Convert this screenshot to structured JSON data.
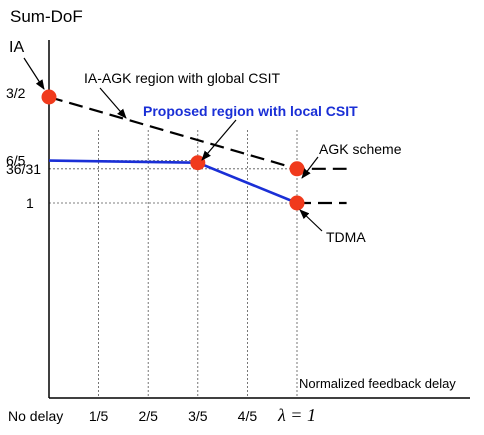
{
  "chart_data": {
    "type": "line",
    "ylabel": "Sum-DoF",
    "xlabel": "Normalized feedback delay",
    "x_ticks": [
      {
        "value": 0,
        "label": "No delay"
      },
      {
        "value": 0.2,
        "label": "1/5"
      },
      {
        "value": 0.4,
        "label": "2/5"
      },
      {
        "value": 0.6,
        "label": "3/5"
      },
      {
        "value": 0.8,
        "label": "4/5"
      },
      {
        "value": 1.0,
        "label": "λ = 1"
      }
    ],
    "y_ticks": [
      {
        "value": 1.5,
        "label": "3/2"
      },
      {
        "value": 1.2,
        "label": "6/5"
      },
      {
        "value": 1.1613,
        "label": "36/31"
      },
      {
        "value": 1.0,
        "label": "1"
      }
    ],
    "xlim": [
      0,
      1.2
    ],
    "series": [
      {
        "name": "IA-AGK region with global CSIT",
        "color": "#000000",
        "dash": true,
        "x": [
          0,
          1.0,
          1.2
        ],
        "y": [
          1.5,
          1.1613,
          1.1613
        ]
      },
      {
        "name": "Proposed region with local CSIT",
        "color": "#1a2fd6",
        "dash": false,
        "x": [
          0,
          0.6,
          1.0
        ],
        "y": [
          1.2,
          1.19,
          1.0
        ]
      },
      {
        "name": "",
        "color": "#000000",
        "dash": true,
        "x": [
          1.0,
          1.2
        ],
        "y": [
          1.0,
          1.0
        ]
      }
    ],
    "points": [
      {
        "label": "IA",
        "x": 0,
        "y": 1.5
      },
      {
        "label": "",
        "x": 0.6,
        "y": 1.19
      },
      {
        "label": "AGK scheme",
        "x": 1.0,
        "y": 1.1613
      },
      {
        "label": "TDMA",
        "x": 1.0,
        "y": 1.0
      }
    ],
    "point_color": "#f03a1c",
    "annotations": [
      {
        "text": "IA-AGK region with global CSIT",
        "target_series": 0
      },
      {
        "text": "Proposed region with local CSIT",
        "target_point": 1
      }
    ]
  }
}
